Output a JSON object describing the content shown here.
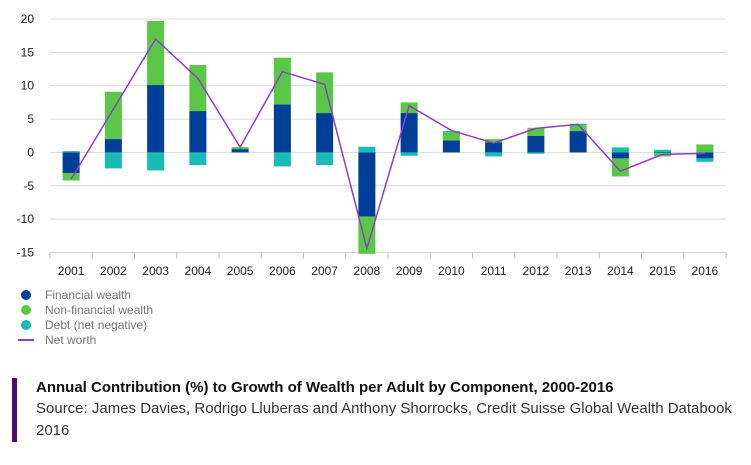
{
  "chart_data": {
    "type": "bar",
    "stacked": true,
    "title": "Annual Contribution (%) to Growth of Wealth per Adult by Component, 2000-2016",
    "xlabel": "",
    "ylabel": "",
    "ylim": [
      -15,
      20
    ],
    "yticks": [
      20,
      15,
      10,
      5,
      0,
      -5,
      -10,
      -15
    ],
    "grid": true,
    "legend_position": "bottom-left",
    "categories": [
      "2001",
      "2002",
      "2003",
      "2004",
      "2005",
      "2006",
      "2007",
      "2008",
      "2009",
      "2010",
      "2011",
      "2012",
      "2013",
      "2014",
      "2015",
      "2016"
    ],
    "series": [
      {
        "name": "Financial wealth",
        "type": "bar",
        "color": "#003f98",
        "values": [
          -3.1,
          2.0,
          10.1,
          6.2,
          0.5,
          7.2,
          5.9,
          -9.6,
          5.9,
          1.8,
          1.5,
          2.5,
          3.2,
          -0.9,
          -0.1,
          -0.9
        ]
      },
      {
        "name": "Non-financial wealth",
        "type": "bar",
        "color": "#5ac846",
        "values": [
          -1.1,
          7.1,
          9.6,
          6.9,
          0.3,
          7.0,
          6.1,
          -5.6,
          1.6,
          1.2,
          0.5,
          1.2,
          0.9,
          -2.7,
          -0.5,
          1.2
        ]
      },
      {
        "name": "Debt (net negative)",
        "type": "bar",
        "color": "#17bcb4",
        "values": [
          0.2,
          -2.4,
          -2.7,
          -1.9,
          0.0,
          -2.1,
          -1.9,
          0.85,
          -0.5,
          0.2,
          -0.6,
          -0.2,
          0.2,
          0.75,
          0.4,
          -0.5
        ]
      },
      {
        "name": "Net worth",
        "type": "line",
        "color": "#8e3fc5",
        "values": [
          -4.0,
          6.5,
          17.0,
          11.1,
          0.8,
          12.1,
          10.2,
          -14.4,
          7.0,
          3.3,
          1.4,
          3.6,
          4.2,
          -2.8,
          -0.3,
          -0.15
        ]
      }
    ]
  },
  "caption": {
    "title": "Annual Contribution (%) to Growth of Wealth per Adult by Component, 2000-2016",
    "source": "Source: James Davies, Rodrigo Lluberas and Anthony Shorrocks, Credit Suisse Global Wealth Databook 2016"
  },
  "colors": {
    "caption_bar": "#4b0f6b",
    "grid": "#d9d9d9"
  }
}
